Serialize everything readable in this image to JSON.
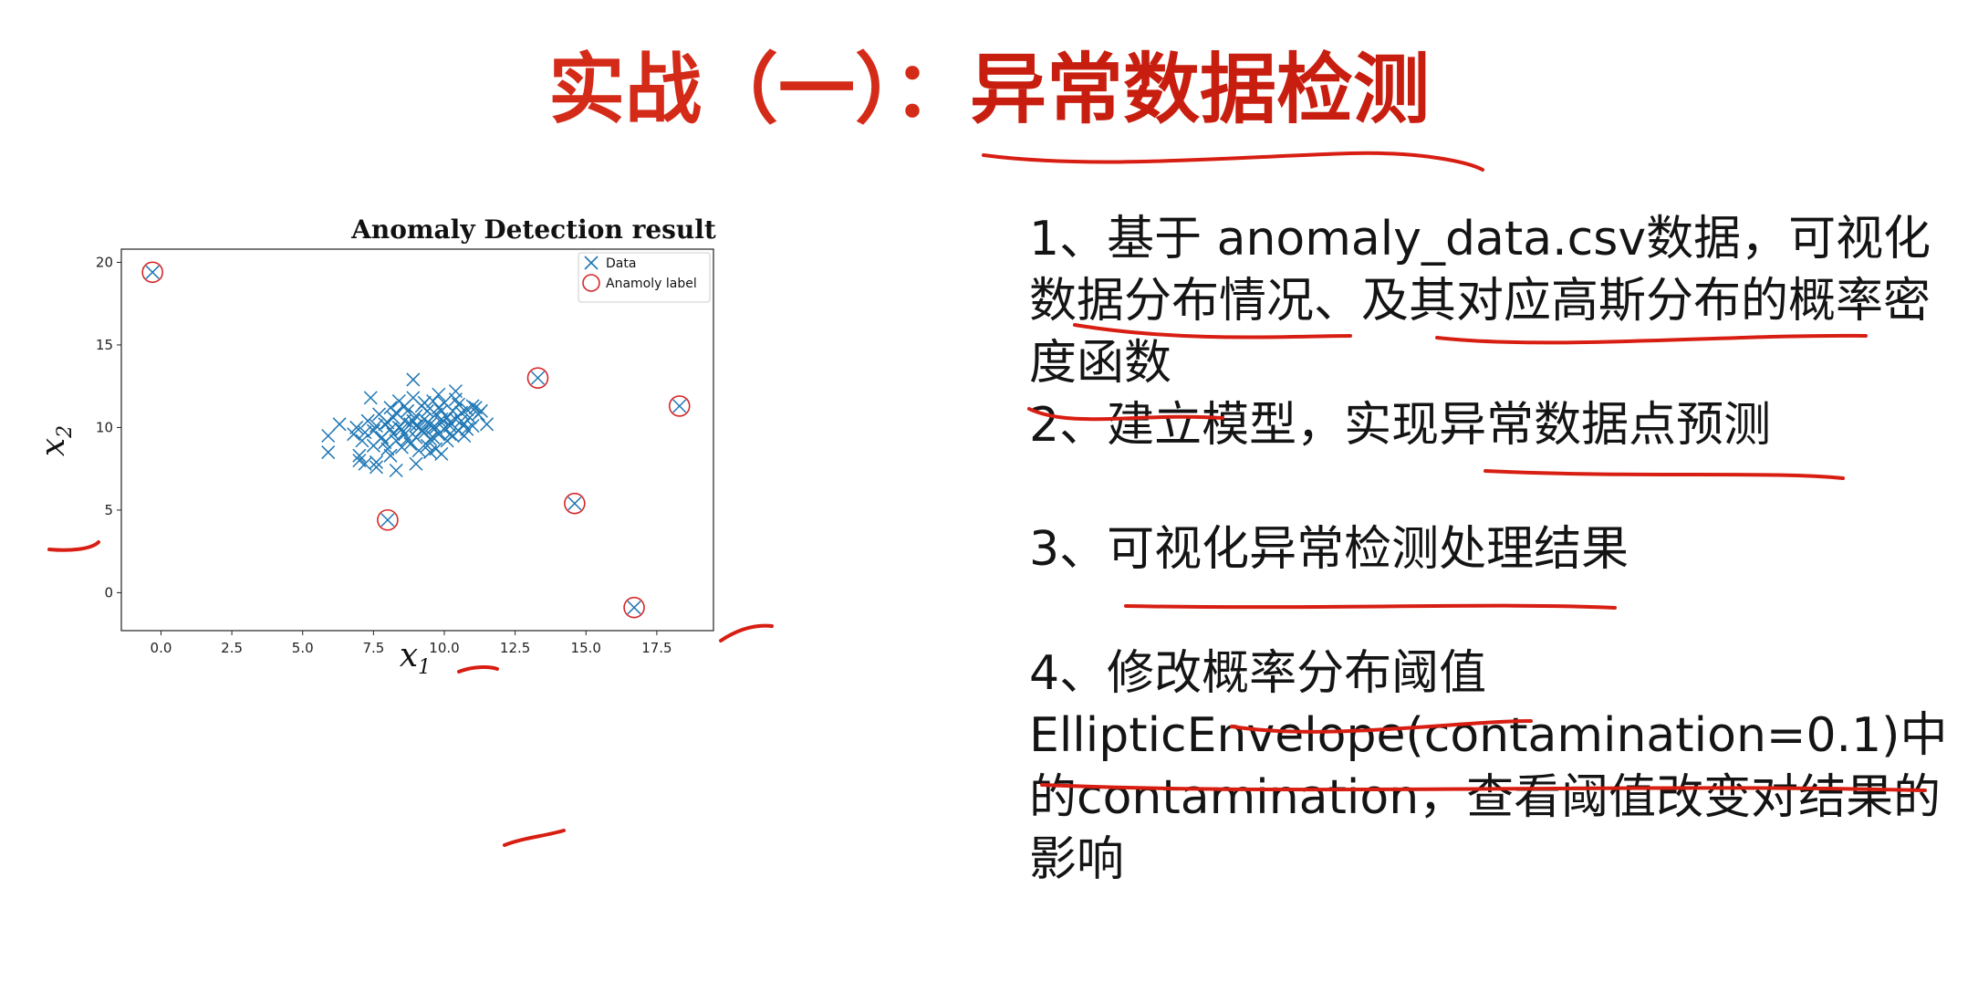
{
  "slide": {
    "title_prefix": "实战（一）：",
    "title_main": "异常数据检测"
  },
  "tasks": [
    "1、基于 anomaly_data.csv数据，可视化数据分布情况、及其对应高斯分布的概率密度函数",
    "2、建立模型，实现异常数据点预测",
    "3、可视化异常检测处理结果",
    "4、修改概率分布阈值EllipticEnvelope(contamination=0.1)中的contamination，查看阈值改变对结果的影响"
  ],
  "chart_data": {
    "type": "scatter",
    "title": "Anomaly Detection result",
    "xlabel": "x",
    "xlabel_sub": "1",
    "ylabel": "x",
    "ylabel_sub": "2",
    "xlim": [
      -1.4,
      19.5
    ],
    "ylim": [
      -2.3,
      20.8
    ],
    "xticks": [
      0.0,
      2.5,
      5.0,
      7.5,
      10.0,
      12.5,
      15.0,
      17.5
    ],
    "xtick_labels": [
      "0.0",
      "2.5",
      "5.0",
      "7.5",
      "10.0",
      "12.5",
      "15.0",
      "17.5"
    ],
    "yticks": [
      0,
      5,
      10,
      15,
      20
    ],
    "ytick_labels": [
      "0",
      "5",
      "10",
      "15",
      "20"
    ],
    "legend": {
      "position": "top-right",
      "entries": [
        "Data",
        "Anamoly label"
      ]
    },
    "colors": {
      "data": "#1f77b4",
      "anomaly": "#d62728"
    },
    "series": [
      {
        "name": "Data",
        "marker": "x",
        "points": [
          [
            -0.3,
            19.4
          ],
          [
            13.3,
            13.0
          ],
          [
            18.3,
            11.3
          ],
          [
            14.6,
            5.4
          ],
          [
            8.0,
            4.4
          ],
          [
            16.7,
            -0.9
          ],
          [
            5.9,
            9.5
          ],
          [
            5.9,
            8.5
          ],
          [
            6.3,
            10.2
          ],
          [
            6.8,
            9.6
          ],
          [
            7.0,
            8.3
          ],
          [
            7.0,
            8.0
          ],
          [
            7.2,
            7.8
          ],
          [
            7.4,
            11.8
          ],
          [
            7.6,
            7.6
          ],
          [
            7.6,
            7.9
          ],
          [
            8.3,
            7.4
          ],
          [
            8.9,
            12.9
          ],
          [
            10.4,
            12.2
          ],
          [
            11.1,
            11.2
          ],
          [
            11.5,
            10.2
          ],
          [
            6.9,
            10.0
          ],
          [
            7.1,
            9.2
          ],
          [
            7.3,
            10.4
          ],
          [
            7.5,
            9.8
          ],
          [
            7.5,
            8.9
          ],
          [
            7.7,
            10.8
          ],
          [
            7.8,
            9.4
          ],
          [
            7.9,
            10.2
          ],
          [
            8.0,
            8.7
          ],
          [
            8.1,
            11.2
          ],
          [
            8.1,
            9.9
          ],
          [
            8.2,
            10.6
          ],
          [
            8.3,
            9.2
          ],
          [
            8.4,
            10.0
          ],
          [
            8.4,
            11.6
          ],
          [
            8.5,
            8.8
          ],
          [
            8.6,
            10.4
          ],
          [
            8.6,
            9.6
          ],
          [
            8.7,
            11.0
          ],
          [
            8.8,
            9.0
          ],
          [
            8.8,
            10.2
          ],
          [
            8.9,
            11.8
          ],
          [
            9.0,
            9.4
          ],
          [
            9.0,
            10.7
          ],
          [
            9.1,
            8.6
          ],
          [
            9.1,
            10.0
          ],
          [
            9.2,
            11.3
          ],
          [
            9.3,
            9.7
          ],
          [
            9.3,
            10.5
          ],
          [
            9.4,
            8.9
          ],
          [
            9.4,
            11.0
          ],
          [
            9.5,
            10.2
          ],
          [
            9.5,
            9.3
          ],
          [
            9.6,
            11.6
          ],
          [
            9.6,
            10.0
          ],
          [
            9.7,
            8.7
          ],
          [
            9.7,
            10.8
          ],
          [
            9.8,
            9.6
          ],
          [
            9.8,
            11.2
          ],
          [
            9.9,
            10.3
          ],
          [
            9.9,
            8.4
          ],
          [
            10.0,
            9.9
          ],
          [
            10.0,
            11.5
          ],
          [
            10.1,
            10.6
          ],
          [
            10.1,
            9.2
          ],
          [
            10.2,
            10.1
          ],
          [
            10.3,
            11.0
          ],
          [
            10.3,
            9.5
          ],
          [
            10.4,
            10.5
          ],
          [
            10.5,
            11.4
          ],
          [
            10.5,
            9.8
          ],
          [
            10.6,
            10.9
          ],
          [
            10.7,
            10.2
          ],
          [
            10.8,
            11.1
          ],
          [
            10.8,
            9.9
          ],
          [
            10.9,
            10.6
          ],
          [
            11.0,
            11.3
          ],
          [
            11.0,
            10.1
          ],
          [
            11.2,
            10.8
          ],
          [
            8.2,
            9.6
          ],
          [
            8.5,
            9.9
          ],
          [
            8.9,
            10.4
          ],
          [
            9.2,
            9.8
          ],
          [
            9.4,
            10.3
          ],
          [
            9.7,
            10.0
          ],
          [
            9.9,
            10.5
          ],
          [
            10.2,
            10.3
          ],
          [
            8.0,
            10.3
          ],
          [
            8.3,
            10.9
          ],
          [
            8.7,
            9.3
          ],
          [
            9.0,
            10.1
          ],
          [
            9.3,
            11.5
          ],
          [
            9.6,
            9.4
          ],
          [
            9.9,
            11.0
          ],
          [
            10.2,
            9.6
          ],
          [
            10.6,
            10.4
          ],
          [
            7.9,
            9.1
          ],
          [
            8.6,
            11.3
          ],
          [
            9.5,
            8.5
          ],
          [
            10.4,
            11.7
          ],
          [
            10.7,
            9.5
          ],
          [
            8.1,
            8.3
          ],
          [
            7.6,
            10.1
          ],
          [
            9.8,
            12.0
          ],
          [
            11.3,
            11.0
          ],
          [
            9.0,
            7.8
          ],
          [
            7.2,
            9.7
          ]
        ]
      },
      {
        "name": "Anamoly label",
        "marker": "open-circle",
        "points": [
          [
            -0.3,
            19.4
          ],
          [
            13.3,
            13.0
          ],
          [
            18.3,
            11.3
          ],
          [
            14.6,
            5.4
          ],
          [
            8.0,
            4.4
          ],
          [
            16.7,
            -0.9
          ]
        ]
      }
    ]
  }
}
